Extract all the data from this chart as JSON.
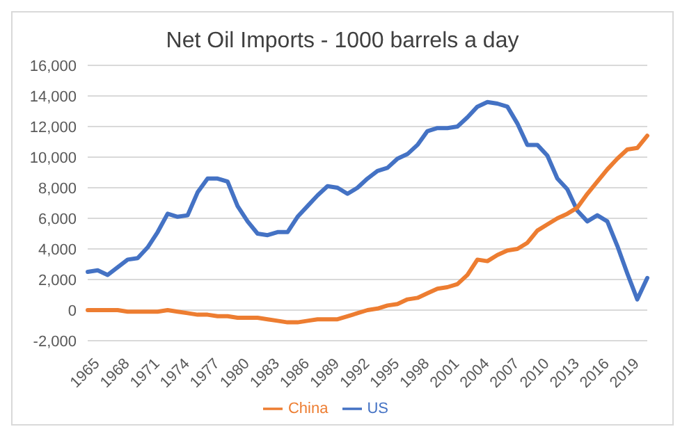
{
  "chart_data": {
    "type": "line",
    "title": "Net Oil Imports - 1000 barrels a day",
    "categories": [
      "1965",
      null,
      null,
      "1968",
      null,
      null,
      "1971",
      null,
      null,
      "1974",
      null,
      null,
      "1977",
      null,
      null,
      "1980",
      null,
      null,
      "1983",
      null,
      null,
      "1986",
      null,
      null,
      "1989",
      null,
      null,
      "1992",
      null,
      null,
      "1995",
      null,
      null,
      "1998",
      null,
      null,
      "2001",
      null,
      null,
      "2004",
      null,
      null,
      "2007",
      null,
      null,
      "2010",
      null,
      null,
      "2013",
      null,
      null,
      "2016",
      null,
      null,
      "2019",
      null,
      null
    ],
    "series": [
      {
        "name": "US",
        "color": "#4472c4",
        "values": [
          2500,
          2600,
          2300,
          2800,
          3300,
          3400,
          4100,
          5100,
          6300,
          6100,
          6200,
          7700,
          8600,
          8600,
          8400,
          6800,
          5800,
          5000,
          4900,
          5100,
          5100,
          6100,
          6800,
          7500,
          8100,
          8000,
          7600,
          8000,
          8600,
          9100,
          9300,
          9900,
          10200,
          10800,
          11700,
          11900,
          11900,
          12000,
          12600,
          13300,
          13600,
          13500,
          13300,
          12200,
          10800,
          10800,
          10100,
          8600,
          7900,
          6500,
          5800,
          6200,
          5800,
          4200,
          2400,
          700,
          2100
        ]
      },
      {
        "name": "China",
        "color": "#ed7d31",
        "values": [
          0,
          0,
          0,
          0,
          -100,
          -100,
          -100,
          -100,
          0,
          -100,
          -200,
          -300,
          -300,
          -400,
          -400,
          -500,
          -500,
          -500,
          -600,
          -700,
          -800,
          -800,
          -700,
          -600,
          -600,
          -600,
          -400,
          -200,
          0,
          100,
          300,
          400,
          700,
          800,
          1100,
          1400,
          1500,
          1700,
          2300,
          3300,
          3200,
          3600,
          3900,
          4000,
          4400,
          5200,
          5600,
          6000,
          6300,
          6700,
          7600,
          8400,
          9200,
          9900,
          10500,
          10600,
          11400
        ]
      }
    ],
    "ylim": [
      -2000,
      16000
    ],
    "yticks": [
      {
        "value": -2000,
        "label": "-2,000"
      },
      0,
      {
        "value": 2000,
        "label": "2,000"
      },
      {
        "value": 4000,
        "label": "4,000"
      },
      {
        "value": 6000,
        "label": "6,000"
      },
      {
        "value": 8000,
        "label": "8,000"
      },
      {
        "value": 10000,
        "label": "10,000"
      },
      {
        "value": 12000,
        "label": "12,000"
      },
      {
        "value": 14000,
        "label": "14,000"
      },
      {
        "value": 16000,
        "label": "16,000"
      }
    ],
    "grid": "y",
    "legend": "bottom",
    "marker": "none",
    "line_style": "solid"
  }
}
